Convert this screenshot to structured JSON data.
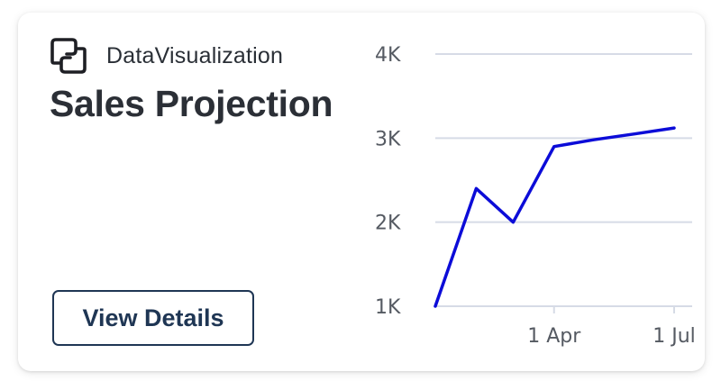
{
  "card": {
    "brand_name": "DataVisualization",
    "title": "Sales Projection",
    "button_label": "View Details"
  },
  "icons": {
    "brand": "chain-link-logo-icon"
  },
  "colors": {
    "line": "#0c0cd8",
    "grid": "#d6dbe6",
    "button_border": "#1f3654",
    "text": "#2b2f36"
  },
  "chart_data": {
    "type": "line",
    "title": "",
    "xlabel": "",
    "ylabel": "",
    "y_ticks": [
      "1K",
      "2K",
      "3K",
      "4K"
    ],
    "x_ticks": [
      "1 Apr",
      "1 Jul"
    ],
    "ylim": [
      1000,
      4000
    ],
    "grid": "horizontal",
    "x": [
      "2023-01-01",
      "2023-02-01",
      "2023-03-01",
      "2023-04-01",
      "2023-05-01",
      "2023-06-01",
      "2023-07-01"
    ],
    "series": [
      {
        "values": [
          1000,
          2400,
          2000,
          2900,
          2980,
          3050,
          3120
        ]
      }
    ]
  }
}
